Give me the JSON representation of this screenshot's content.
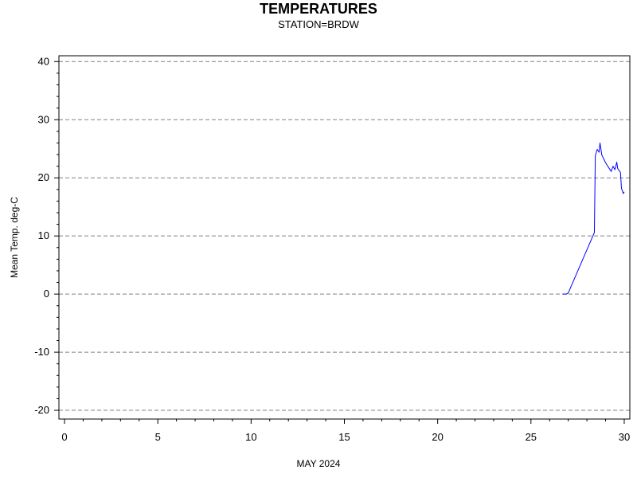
{
  "chart_data": {
    "type": "line",
    "title": "TEMPERATURES",
    "subtitle": "STATION=BRDW",
    "xlabel": "MAY 2024",
    "ylabel": "Mean Temp. deg-C",
    "xlim": [
      -0.3,
      30.3
    ],
    "ylim": [
      -21.5,
      41
    ],
    "x_ticks": [
      0,
      5,
      10,
      15,
      20,
      25,
      30
    ],
    "y_ticks": [
      -20,
      -10,
      0,
      10,
      20,
      30,
      40
    ],
    "grid": "horizontal-dashed",
    "series": [
      {
        "color": "#0000ff",
        "x": [
          26.7,
          26.9,
          27.0,
          28.4,
          28.45,
          28.55,
          28.65,
          28.7,
          28.8,
          28.85,
          29.0,
          29.3,
          29.4,
          29.5,
          29.6,
          29.65,
          29.8,
          29.85,
          29.95,
          30.0
        ],
        "y": [
          0,
          0,
          0.2,
          10.6,
          23.8,
          24.9,
          24.4,
          26.0,
          23.9,
          23.6,
          22.6,
          21.1,
          22.0,
          21.4,
          22.7,
          21.6,
          20.9,
          18.2,
          17.3,
          17.6
        ]
      }
    ]
  }
}
